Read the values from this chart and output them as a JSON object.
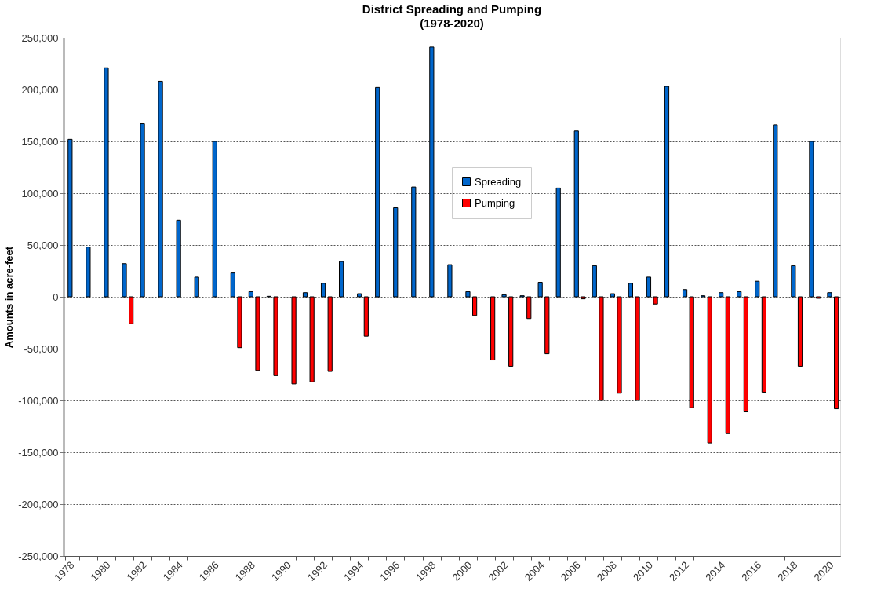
{
  "chart_data": {
    "type": "bar",
    "title": "District Spreading and Pumping",
    "subtitle": "(1978-2020)",
    "ylabel": "Amounts in acre-feet",
    "categories": [
      "1978",
      null,
      "1980",
      null,
      "1982",
      null,
      "1984",
      null,
      "1986",
      null,
      "1988",
      null,
      "1990",
      null,
      "1992",
      null,
      "1994",
      null,
      "1996",
      null,
      "1998",
      null,
      "2000",
      null,
      "2002",
      null,
      "2004",
      null,
      "2006",
      null,
      "2008",
      null,
      "2010",
      null,
      "2012",
      null,
      "2014",
      null,
      "2016",
      null,
      "2018",
      null,
      "2020"
    ],
    "series": [
      {
        "name": "Spreading",
        "color": "#0066cc",
        "values": [
          152000,
          48000,
          221000,
          32000,
          167000,
          208000,
          74000,
          19000,
          150000,
          23000,
          5000,
          500,
          null,
          4000,
          13000,
          34000,
          3000,
          202000,
          86000,
          106000,
          241000,
          31000,
          5000,
          null,
          2000,
          1000,
          14000,
          105000,
          160000,
          30000,
          3000,
          13000,
          19000,
          203000,
          7000,
          1000,
          4000,
          5000,
          15000,
          166000,
          30000,
          150000,
          4000
        ]
      },
      {
        "name": "Pumping",
        "color": "#ff0000",
        "values": [
          null,
          null,
          null,
          -26000,
          null,
          null,
          null,
          null,
          null,
          -49000,
          -71000,
          -76000,
          -84000,
          -82000,
          -72000,
          null,
          -38000,
          null,
          null,
          null,
          null,
          null,
          -18000,
          -61000,
          -67000,
          -21000,
          -55000,
          null,
          -2000,
          -100000,
          -93000,
          -100000,
          -7000,
          null,
          -107000,
          -141000,
          -132000,
          -111000,
          -92000,
          null,
          -67000,
          -1500,
          -108000
        ]
      }
    ],
    "ylim": [
      -250000,
      250000
    ],
    "yticks": [
      {
        "value": -250000,
        "label": "-250,000"
      },
      {
        "value": -200000,
        "label": "-200,000"
      },
      {
        "value": -150000,
        "label": "-150,000"
      },
      {
        "value": -100000,
        "label": "-100,000"
      },
      {
        "value": -50000,
        "label": "-50,000"
      },
      0,
      {
        "value": 50000,
        "label": "50,000"
      },
      {
        "value": 100000,
        "label": "100,000"
      },
      {
        "value": 150000,
        "label": "150,000"
      },
      {
        "value": 200000,
        "label": "200,000"
      },
      {
        "value": 250000,
        "label": "250,000"
      }
    ],
    "grid": "y",
    "legend": "top"
  }
}
